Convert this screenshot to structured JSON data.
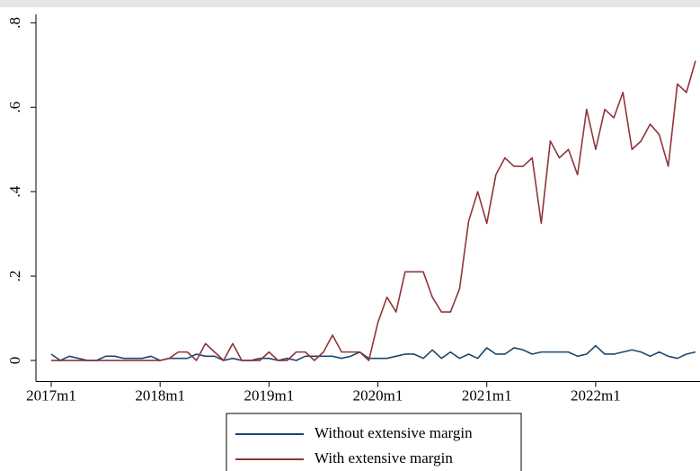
{
  "chart_data": {
    "type": "line",
    "categories": [
      "2017m1",
      null,
      null,
      null,
      null,
      null,
      null,
      null,
      null,
      null,
      null,
      null,
      "2018m1",
      null,
      null,
      null,
      null,
      null,
      null,
      null,
      null,
      null,
      null,
      null,
      "2019m1",
      null,
      null,
      null,
      null,
      null,
      null,
      null,
      null,
      null,
      null,
      null,
      "2020m1",
      null,
      null,
      null,
      null,
      null,
      null,
      null,
      null,
      null,
      null,
      null,
      "2021m1",
      null,
      null,
      null,
      null,
      null,
      null,
      null,
      null,
      null,
      null,
      null,
      "2022m1",
      null,
      null,
      null,
      null,
      null,
      null,
      null,
      null,
      null,
      null,
      null
    ],
    "series": [
      {
        "name": "Without extensive margin",
        "color": "#1a476f",
        "values": [
          0.015,
          0,
          0.01,
          0.005,
          0,
          0,
          0.01,
          0.01,
          0.005,
          0.005,
          0.005,
          0.01,
          0,
          0.005,
          0.005,
          0.005,
          0.015,
          0.01,
          0.01,
          0,
          0.005,
          0,
          0,
          0.005,
          0.005,
          0,
          0.005,
          0,
          0.01,
          0.01,
          0.01,
          0.01,
          0.005,
          0.01,
          0.02,
          0.005,
          0.005,
          0.005,
          0.01,
          0.015,
          0.015,
          0.005,
          0.025,
          0.005,
          0.02,
          0.005,
          0.015,
          0.005,
          0.03,
          0.015,
          0.015,
          0.03,
          0.025,
          0.015,
          0.02,
          0.02,
          0.02,
          0.02,
          0.01,
          0.015,
          0.035,
          0.015,
          0.015,
          0.02,
          0.025,
          0.02,
          0.01,
          0.02,
          0.01,
          0.005,
          0.015,
          0.02
        ]
      },
      {
        "name": "With extensive margin",
        "color": "#90353b",
        "values": [
          0,
          0,
          0,
          0,
          0,
          0,
          0,
          0,
          0,
          0,
          0,
          0,
          0,
          0.005,
          0.02,
          0.02,
          0,
          0.04,
          0.02,
          0,
          0.04,
          0,
          0,
          0,
          0.02,
          0,
          0,
          0.02,
          0.02,
          0,
          0.02,
          0.06,
          0.02,
          0.02,
          0.02,
          0,
          0.09,
          0.15,
          0.115,
          0.21,
          0.21,
          0.21,
          0.15,
          0.115,
          0.115,
          0.17,
          0.33,
          0.4,
          0.325,
          0.44,
          0.48,
          0.46,
          0.46,
          0.48,
          0.325,
          0.52,
          0.48,
          0.5,
          0.44,
          0.595,
          0.5,
          0.595,
          0.575,
          0.635,
          0.5,
          0.52,
          0.56,
          0.535,
          0.46,
          0.655,
          0.635,
          0.71
        ]
      }
    ],
    "ylim": [
      -0.05,
      0.82
    ],
    "yticks": [
      0,
      {
        "value": 0.2,
        "label": ".2"
      },
      {
        "value": 0.4,
        "label": ".4"
      },
      {
        "value": 0.6,
        "label": ".6"
      },
      {
        "value": 0.8,
        "label": ".8"
      }
    ],
    "grid": false,
    "legend": "bottom"
  }
}
